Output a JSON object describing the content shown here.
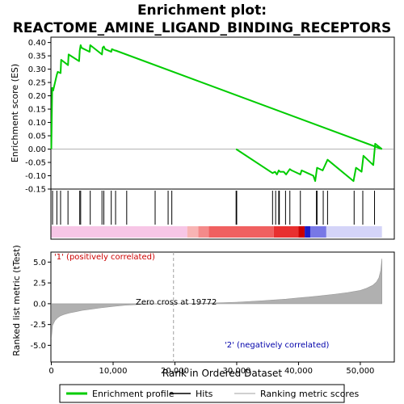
{
  "chart_data": {
    "type": "line",
    "title": "Enrichment plot:\nREACTOME_AMINE_LIGAND_BINDING_RECEPTORS",
    "title_lines": [
      "Enrichment plot:",
      "REACTOME_AMINE_LIGAND_BINDING_RECEPTORS"
    ],
    "es_panel": {
      "ylabel": "Enrichment score (ES)",
      "ylim": [
        -0.15,
        0.42
      ],
      "yticks": [
        -0.15,
        -0.1,
        -0.05,
        0.0,
        0.05,
        0.1,
        0.15,
        0.2,
        0.25,
        0.3,
        0.35,
        0.4
      ],
      "ytick_labels": [
        "-0.15",
        "-0.10",
        "-0.05",
        "0.00",
        "0.05",
        "0.10",
        "0.15",
        "0.20",
        "0.25",
        "0.30",
        "0.35",
        "0.40"
      ],
      "line_color": "#00cc00",
      "series": [
        {
          "x": [
            0,
            150,
            300,
            900,
            1050,
            1500,
            1600,
            2700,
            2800,
            4500,
            4600,
            4750,
            4900,
            6200,
            6300,
            8200,
            8300,
            8500,
            8700,
            9700,
            9800,
            10300,
            10400,
            53500
          ],
          "y": [
            0.0,
            0.23,
            0.22,
            0.28,
            0.29,
            0.285,
            0.335,
            0.315,
            0.355,
            0.33,
            0.37,
            0.39,
            0.38,
            0.365,
            0.39,
            0.355,
            0.38,
            0.385,
            0.375,
            0.365,
            0.375,
            0.37,
            0.37,
            0.0
          ]
        },
        {
          "x": [
            29900,
            35800,
            36200,
            36500,
            36800,
            37000,
            37600,
            38000,
            38300,
            38600,
            38900,
            40300,
            40500,
            42400,
            42700,
            43000,
            43900,
            44200,
            44700,
            48900,
            49300,
            50200,
            50500,
            52100,
            52400,
            53500
          ],
          "y": [
            0.0,
            -0.09,
            -0.085,
            -0.095,
            -0.08,
            -0.085,
            -0.085,
            -0.095,
            -0.085,
            -0.075,
            -0.08,
            -0.095,
            -0.08,
            -0.1,
            -0.12,
            -0.07,
            -0.08,
            -0.065,
            -0.04,
            -0.12,
            -0.07,
            -0.085,
            -0.025,
            -0.06,
            0.02,
            0.0
          ]
        }
      ]
    },
    "hits": [
      200,
      900,
      1500,
      2700,
      4600,
      4750,
      6300,
      8200,
      8500,
      9700,
      10400,
      12200,
      16800,
      18900,
      19500,
      29900,
      30000,
      35800,
      36300,
      36800,
      36900,
      37900,
      38600,
      40300,
      42900,
      43000,
      44000,
      44700,
      49000,
      50400,
      52300
    ],
    "x_axis": {
      "xlabel": "Rank in Ordered Dataset",
      "xlim": [
        0,
        55500
      ],
      "xticks": [
        0,
        10000,
        20000,
        30000,
        40000,
        50000
      ],
      "xtick_labels": [
        "0",
        "10,000",
        "20,000",
        "30,000",
        "40,000",
        "50,000"
      ]
    },
    "metric_panel": {
      "ylabel": "Ranked list metric (tTest)",
      "ylim": [
        -7.0,
        6.2
      ],
      "yticks": [
        -5.0,
        -2.5,
        0.0,
        2.5,
        5.0
      ],
      "ytick_labels": [
        "-5.0",
        "-2.5",
        "0.0",
        "2.5",
        "5.0"
      ],
      "curve_x": [
        0,
        200,
        600,
        1000,
        1500,
        2000,
        2500,
        3000,
        4000,
        5000,
        6000,
        8000,
        10000,
        12000,
        15000,
        18000,
        19772,
        22000,
        26000,
        30000,
        34000,
        38000,
        40000,
        43000,
        46000,
        48000,
        50000,
        51000,
        52000,
        52600,
        53000,
        53300,
        53500
      ],
      "curve_y": [
        -4.2,
        -2.6,
        -2.0,
        -1.7,
        -1.45,
        -1.3,
        -1.2,
        -1.1,
        -0.95,
        -0.8,
        -0.7,
        -0.5,
        -0.32,
        -0.18,
        -0.07,
        -0.01,
        0.0,
        0.02,
        0.08,
        0.18,
        0.35,
        0.55,
        0.7,
        0.9,
        1.15,
        1.35,
        1.6,
        1.85,
        2.2,
        2.6,
        3.1,
        4.0,
        5.4
      ],
      "label_positive": "'1' (positively correlated)",
      "label_negative": "'2' (negatively correlated)",
      "zero_cross_label": "Zero cross at 19772",
      "zero_cross": 19772
    },
    "heat_bar_segments": [
      {
        "x0": 0,
        "x1": 22000,
        "color": "#f7c6e6"
      },
      {
        "x0": 22000,
        "x1": 23800,
        "color": "#f8b4b4"
      },
      {
        "x0": 23800,
        "x1": 25500,
        "color": "#f48a8a"
      },
      {
        "x0": 25500,
        "x1": 36000,
        "color": "#f06060"
      },
      {
        "x0": 36000,
        "x1": 40000,
        "color": "#e83030"
      },
      {
        "x0": 40000,
        "x1": 41000,
        "color": "#cc0000"
      },
      {
        "x0": 41000,
        "x1": 41900,
        "color": "#1e1ec8"
      },
      {
        "x0": 41900,
        "x1": 44500,
        "color": "#7878e6"
      },
      {
        "x0": 44500,
        "x1": 53500,
        "color": "#d4d4f8"
      }
    ],
    "legend": {
      "placement": "bottom",
      "items": [
        {
          "label": "Enrichment profile",
          "color": "#00cc00",
          "kind": "line"
        },
        {
          "label": "Hits",
          "color": "#000000",
          "kind": "line"
        },
        {
          "label": "Ranking metric scores",
          "color": "#c0c0c0",
          "kind": "line"
        }
      ]
    },
    "colors": {
      "positive_label": "#cc0000",
      "negative_label": "#0000aa",
      "metric_fill": "#b0b0b0",
      "zero_cross_line": "#a0a0a0"
    }
  }
}
